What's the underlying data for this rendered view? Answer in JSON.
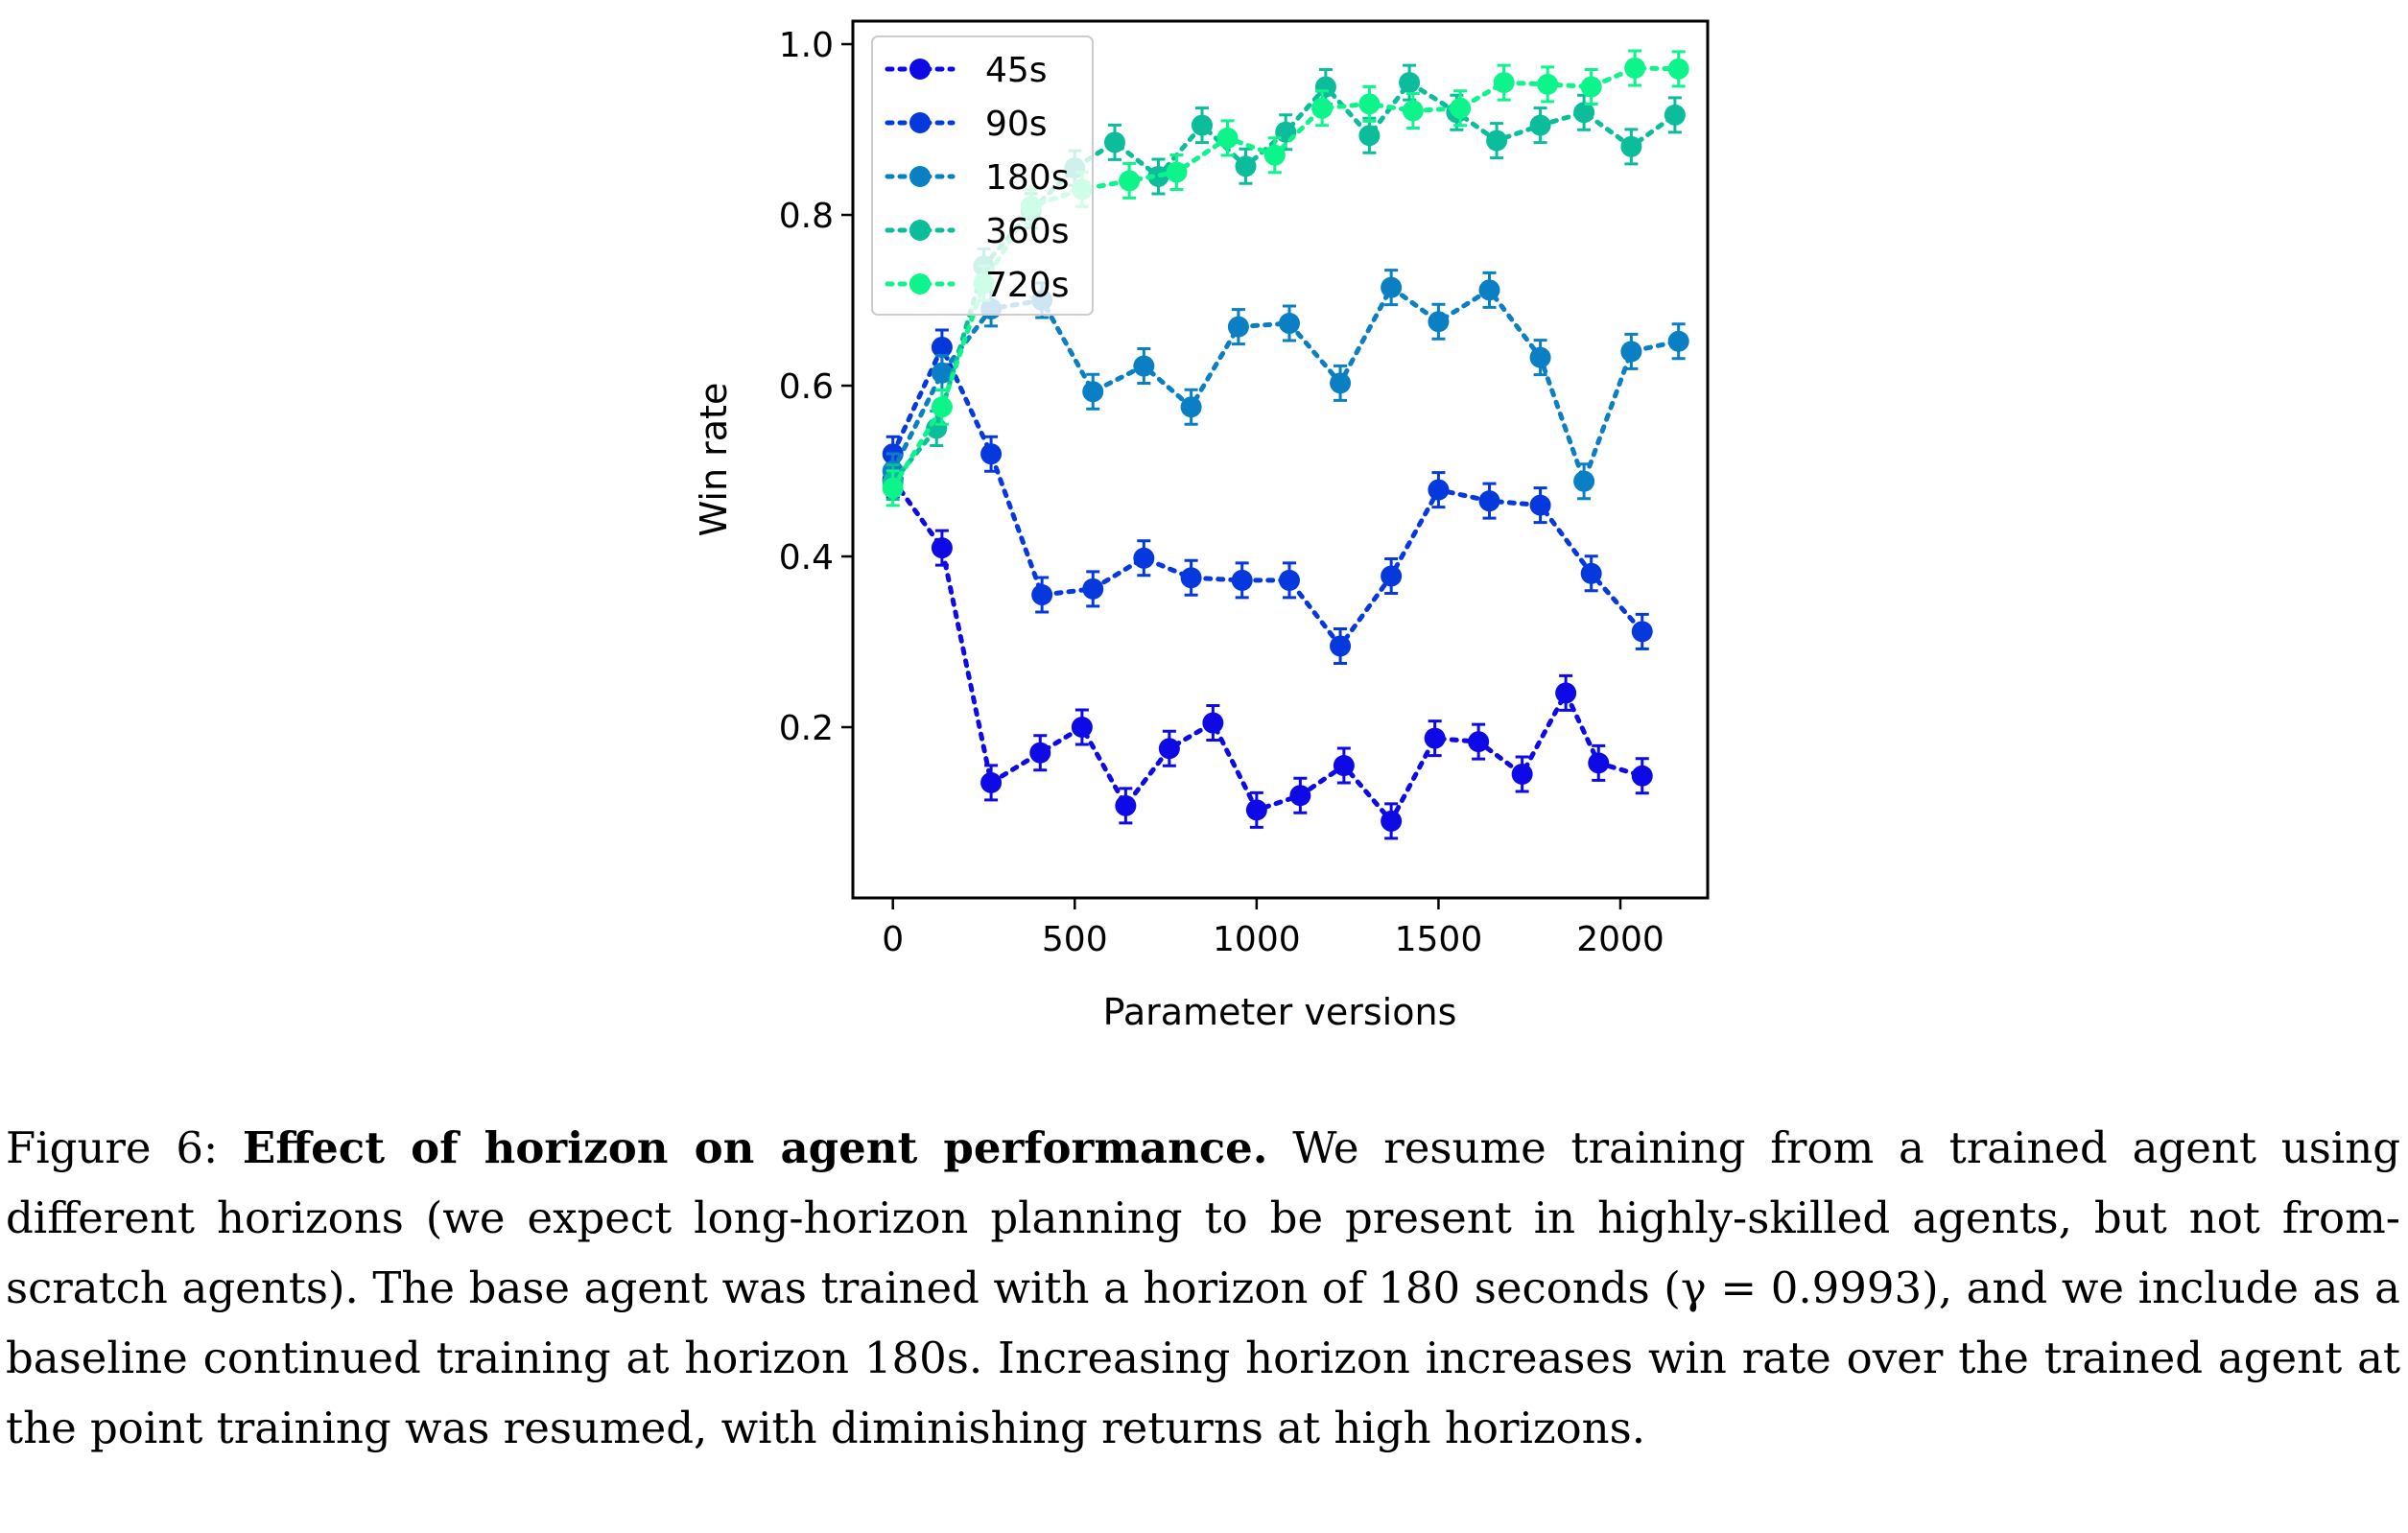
{
  "chart_data": {
    "type": "line",
    "xlabel": "Parameter versions",
    "ylabel": "Win rate",
    "xlim": [
      -110,
      2240
    ],
    "ylim": [
      0.0,
      1.027
    ],
    "xticks": [
      0,
      500,
      1000,
      1500,
      2000
    ],
    "xtick_labels": [
      "0",
      "500",
      "1000",
      "1500",
      "2000"
    ],
    "yticks": [
      0.2,
      0.4,
      0.6,
      0.8,
      1.0
    ],
    "ytick_labels": [
      "0.2",
      "0.4",
      "0.6",
      "0.8",
      "1.0"
    ],
    "grid": false,
    "legend_position": "top-left",
    "marker": "circle",
    "line_style": "dotted",
    "error_bars": true,
    "series": [
      {
        "name": "45s",
        "color": "#0d0ae6",
        "x": [
          0,
          135,
          270,
          405,
          520,
          640,
          760,
          880,
          1000,
          1120,
          1240,
          1370,
          1490,
          1610,
          1730,
          1850,
          1940,
          2060
        ],
        "y": [
          0.49,
          0.41,
          0.135,
          0.17,
          0.2,
          0.108,
          0.175,
          0.205,
          0.103,
          0.12,
          0.155,
          0.09,
          0.187,
          0.183,
          0.145,
          0.24,
          0.158,
          0.143
        ]
      },
      {
        "name": "90s",
        "color": "#0539dd",
        "x": [
          0,
          135,
          270,
          410,
          550,
          690,
          820,
          960,
          1090,
          1230,
          1370,
          1500,
          1640,
          1780,
          1920,
          2060
        ],
        "y": [
          0.52,
          0.645,
          0.52,
          0.355,
          0.362,
          0.398,
          0.375,
          0.372,
          0.372,
          0.295,
          0.377,
          0.478,
          0.465,
          0.46,
          0.38,
          0.312
        ]
      },
      {
        "name": "180s",
        "color": "#0a7fc4",
        "x": [
          0,
          135,
          270,
          410,
          550,
          690,
          820,
          950,
          1090,
          1230,
          1370,
          1500,
          1640,
          1780,
          1900,
          2030,
          2160
        ],
        "y": [
          0.5,
          0.615,
          0.69,
          0.7,
          0.593,
          0.623,
          0.575,
          0.669,
          0.673,
          0.603,
          0.715,
          0.675,
          0.712,
          0.633,
          0.488,
          0.64,
          0.652
        ]
      },
      {
        "name": "360s",
        "color": "#0bbd9a",
        "x": [
          0,
          120,
          250,
          380,
          500,
          610,
          730,
          850,
          970,
          1080,
          1190,
          1310,
          1420,
          1550,
          1660,
          1780,
          1900,
          2030,
          2150
        ],
        "y": [
          0.487,
          0.55,
          0.74,
          0.805,
          0.855,
          0.885,
          0.845,
          0.905,
          0.857,
          0.897,
          0.95,
          0.893,
          0.955,
          0.92,
          0.887,
          0.905,
          0.92,
          0.88,
          0.917
        ]
      },
      {
        "name": "720s",
        "color": "#0df58a",
        "x": [
          0,
          135,
          250,
          380,
          520,
          650,
          780,
          920,
          1050,
          1180,
          1310,
          1430,
          1560,
          1680,
          1800,
          1920,
          2040,
          2160
        ],
        "y": [
          0.48,
          0.575,
          0.72,
          0.81,
          0.83,
          0.84,
          0.85,
          0.89,
          0.87,
          0.925,
          0.93,
          0.922,
          0.925,
          0.955,
          0.953,
          0.95,
          0.972,
          0.971
        ]
      }
    ]
  },
  "caption": {
    "label": "Figure 6:",
    "title": "Effect of horizon on agent performance.",
    "text": "We resume training from a trained agent using different horizons (we expect long-horizon planning to be present in highly-skilled agents, but not from-scratch agents). The base agent was trained with a horizon of 180 seconds (γ = 0.9993), and we include as a baseline continued training at horizon 180s. Increasing horizon increases win rate over the trained agent at the point training was resumed, with diminishing returns at high horizons."
  }
}
